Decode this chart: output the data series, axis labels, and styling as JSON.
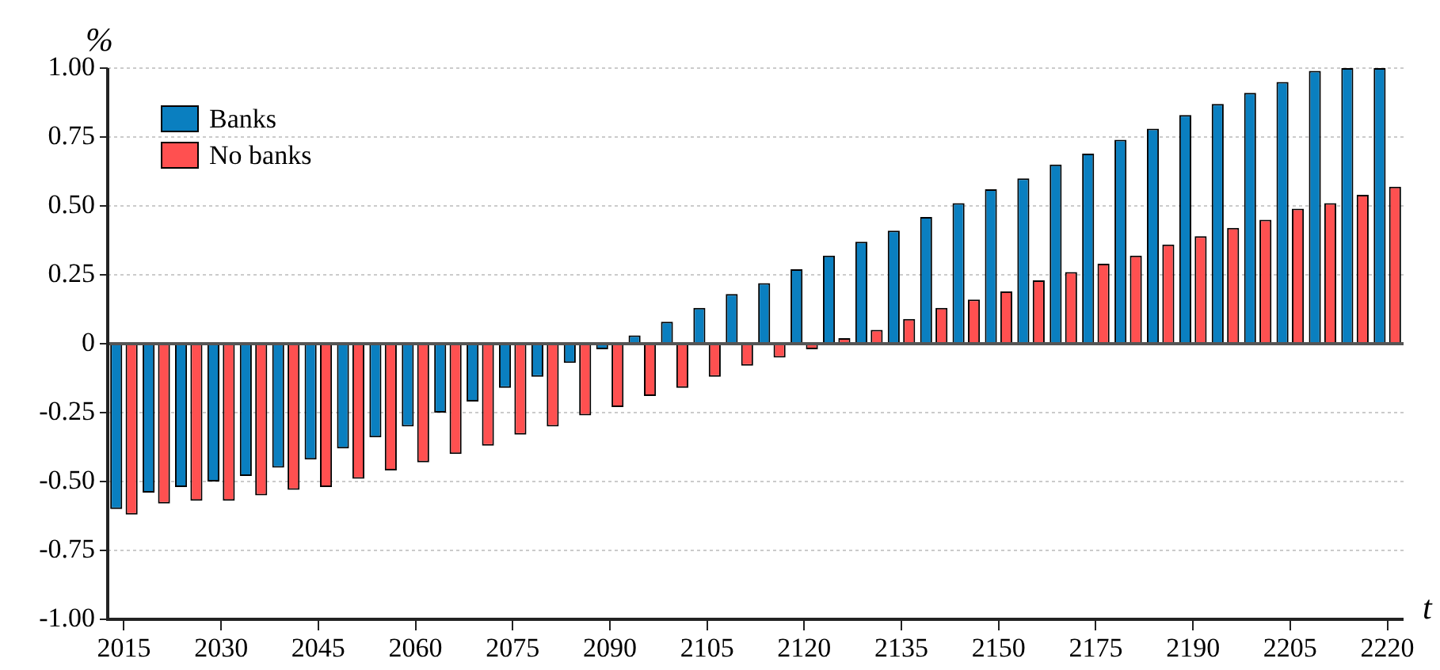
{
  "chart_data": {
    "type": "bar",
    "xlabel": "t",
    "ylabel": "%",
    "categories": [
      "2015",
      null,
      null,
      "2030",
      null,
      null,
      "2045",
      null,
      null,
      "2060",
      null,
      null,
      "2075",
      null,
      null,
      "2090",
      null,
      null,
      "2105",
      null,
      null,
      "2120",
      null,
      null,
      "2135",
      null,
      null,
      "2150",
      null,
      null,
      "2175",
      null,
      null,
      "2190",
      null,
      null,
      "2205",
      null,
      null,
      "2220"
    ],
    "series": [
      {
        "name": "Banks",
        "color": "#0a7fc0",
        "values": [
          -0.6,
          -0.54,
          -0.52,
          -0.5,
          -0.48,
          -0.45,
          -0.42,
          -0.38,
          -0.34,
          -0.3,
          -0.25,
          -0.21,
          -0.16,
          -0.12,
          -0.07,
          -0.02,
          0.03,
          0.08,
          0.13,
          0.18,
          0.22,
          0.27,
          0.32,
          0.37,
          0.41,
          0.46,
          0.51,
          0.56,
          0.6,
          0.65,
          0.69,
          0.74,
          0.78,
          0.83,
          0.87,
          0.91,
          0.95,
          0.99,
          1.0,
          1.0
        ]
      },
      {
        "name": "No banks",
        "color": "#ff5050",
        "values": [
          -0.62,
          -0.58,
          -0.57,
          -0.57,
          -0.55,
          -0.53,
          -0.52,
          -0.49,
          -0.46,
          -0.43,
          -0.4,
          -0.37,
          -0.33,
          -0.3,
          -0.26,
          -0.23,
          -0.19,
          -0.16,
          -0.12,
          -0.08,
          -0.05,
          -0.02,
          0.02,
          0.05,
          0.09,
          0.13,
          0.16,
          0.19,
          0.23,
          0.26,
          0.29,
          0.32,
          0.36,
          0.39,
          0.42,
          0.45,
          0.49,
          0.51,
          0.54,
          0.57
        ]
      }
    ],
    "ylim": [
      -1,
      1
    ],
    "yticks": [
      {
        "value": -1,
        "label": "-1.00"
      },
      {
        "value": -0.75,
        "label": "-0.75"
      },
      {
        "value": -0.5,
        "label": "-0.50"
      },
      {
        "value": -0.25,
        "label": "-0.25"
      },
      0,
      {
        "value": 0.25,
        "label": "0.25"
      },
      {
        "value": 0.5,
        "label": "0.50"
      },
      {
        "value": 0.75,
        "label": "0.75"
      },
      {
        "value": 1,
        "label": "1.00"
      }
    ],
    "grid": "y",
    "legend": "top left"
  }
}
